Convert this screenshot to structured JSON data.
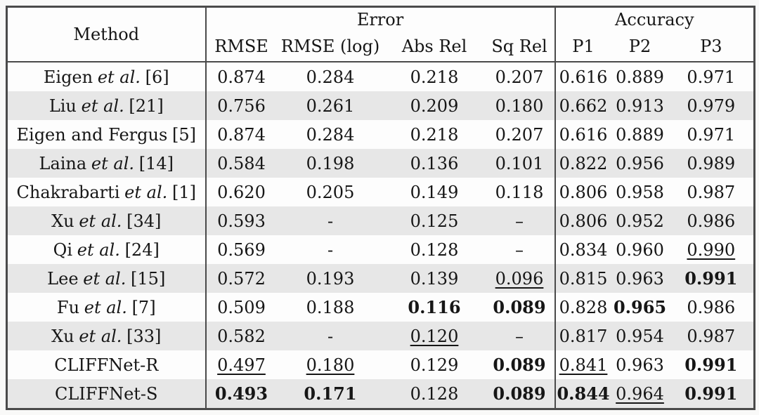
{
  "table": {
    "header": {
      "method_label": "Method",
      "groups": [
        {
          "label": "Error",
          "colspan": 4
        },
        {
          "label": "Accuracy",
          "colspan": 3
        }
      ],
      "subheaders": [
        "RMSE",
        "RMSE (log)",
        "Abs Rel",
        "Sq Rel",
        "P1",
        "P2",
        "P3"
      ]
    },
    "rows": [
      {
        "m1": "Eigen",
        "m2": "et al.",
        "m3": "[6]",
        "c": [
          [
            "0.874",
            "n"
          ],
          [
            "0.284",
            "n"
          ],
          [
            "0.218",
            "n"
          ],
          [
            "0.207",
            "n"
          ],
          [
            "0.616",
            "n"
          ],
          [
            "0.889",
            "n"
          ],
          [
            "0.971",
            "n"
          ]
        ]
      },
      {
        "m1": "Liu",
        "m2": "et al.",
        "m3": "[21]",
        "c": [
          [
            "0.756",
            "n"
          ],
          [
            "0.261",
            "n"
          ],
          [
            "0.209",
            "n"
          ],
          [
            "0.180",
            "n"
          ],
          [
            "0.662",
            "n"
          ],
          [
            "0.913",
            "n"
          ],
          [
            "0.979",
            "n"
          ]
        ]
      },
      {
        "m1": "Eigen and Fergus",
        "m2": "",
        "m3": "[5]",
        "c": [
          [
            "0.874",
            "n"
          ],
          [
            "0.284",
            "n"
          ],
          [
            "0.218",
            "n"
          ],
          [
            "0.207",
            "n"
          ],
          [
            "0.616",
            "n"
          ],
          [
            "0.889",
            "n"
          ],
          [
            "0.971",
            "n"
          ]
        ]
      },
      {
        "m1": "Laina",
        "m2": "et al.",
        "m3": "[14]",
        "c": [
          [
            "0.584",
            "n"
          ],
          [
            "0.198",
            "n"
          ],
          [
            "0.136",
            "n"
          ],
          [
            "0.101",
            "n"
          ],
          [
            "0.822",
            "n"
          ],
          [
            "0.956",
            "n"
          ],
          [
            "0.989",
            "n"
          ]
        ]
      },
      {
        "m1": "Chakrabarti",
        "m2": "et al.",
        "m3": "[1]",
        "c": [
          [
            "0.620",
            "n"
          ],
          [
            "0.205",
            "n"
          ],
          [
            "0.149",
            "n"
          ],
          [
            "0.118",
            "n"
          ],
          [
            "0.806",
            "n"
          ],
          [
            "0.958",
            "n"
          ],
          [
            "0.987",
            "n"
          ]
        ]
      },
      {
        "m1": "Xu",
        "m2": "et al.",
        "m3": "[34]",
        "c": [
          [
            "0.593",
            "n"
          ],
          [
            "-",
            "n"
          ],
          [
            "0.125",
            "n"
          ],
          [
            "–",
            "n"
          ],
          [
            "0.806",
            "n"
          ],
          [
            "0.952",
            "n"
          ],
          [
            "0.986",
            "n"
          ]
        ]
      },
      {
        "m1": "Qi",
        "m2": "et al.",
        "m3": "[24]",
        "c": [
          [
            "0.569",
            "n"
          ],
          [
            "-",
            "n"
          ],
          [
            "0.128",
            "n"
          ],
          [
            "–",
            "n"
          ],
          [
            "0.834",
            "n"
          ],
          [
            "0.960",
            "n"
          ],
          [
            "0.990",
            "u"
          ]
        ]
      },
      {
        "m1": "Lee",
        "m2": "et al.",
        "m3": "[15]",
        "c": [
          [
            "0.572",
            "n"
          ],
          [
            "0.193",
            "n"
          ],
          [
            "0.139",
            "n"
          ],
          [
            "0.096",
            "u"
          ],
          [
            "0.815",
            "n"
          ],
          [
            "0.963",
            "n"
          ],
          [
            "0.991",
            "b"
          ]
        ]
      },
      {
        "m1": "Fu",
        "m2": "et al.",
        "m3": "[7]",
        "c": [
          [
            "0.509",
            "n"
          ],
          [
            "0.188",
            "n"
          ],
          [
            "0.116",
            "b"
          ],
          [
            "0.089",
            "b"
          ],
          [
            "0.828",
            "n"
          ],
          [
            "0.965",
            "b"
          ],
          [
            "0.986",
            "n"
          ]
        ]
      },
      {
        "m1": "Xu",
        "m2": "et al.",
        "m3": "[33]",
        "c": [
          [
            "0.582",
            "n"
          ],
          [
            "-",
            "n"
          ],
          [
            "0.120",
            "u"
          ],
          [
            "–",
            "n"
          ],
          [
            "0.817",
            "n"
          ],
          [
            "0.954",
            "n"
          ],
          [
            "0.987",
            "n"
          ]
        ]
      },
      {
        "m1": "CLIFFNet-R",
        "m2": "",
        "m3": "",
        "c": [
          [
            "0.497",
            "u"
          ],
          [
            "0.180",
            "u"
          ],
          [
            "0.129",
            "n"
          ],
          [
            "0.089",
            "b"
          ],
          [
            "0.841",
            "u"
          ],
          [
            "0.963",
            "n"
          ],
          [
            "0.991",
            "b"
          ]
        ]
      },
      {
        "m1": "CLIFFNet-S",
        "m2": "",
        "m3": "",
        "c": [
          [
            "0.493",
            "b"
          ],
          [
            "0.171",
            "b"
          ],
          [
            "0.128",
            "n"
          ],
          [
            "0.089",
            "b"
          ],
          [
            "0.844",
            "b"
          ],
          [
            "0.964",
            "u"
          ],
          [
            "0.991",
            "b"
          ]
        ]
      }
    ]
  },
  "colors": {
    "page_background": "#f9f9f8",
    "table_background": "#fdfdfd",
    "stripe_background": "#e7e7e7",
    "border": "#4a4a4a",
    "text": "#161616"
  }
}
